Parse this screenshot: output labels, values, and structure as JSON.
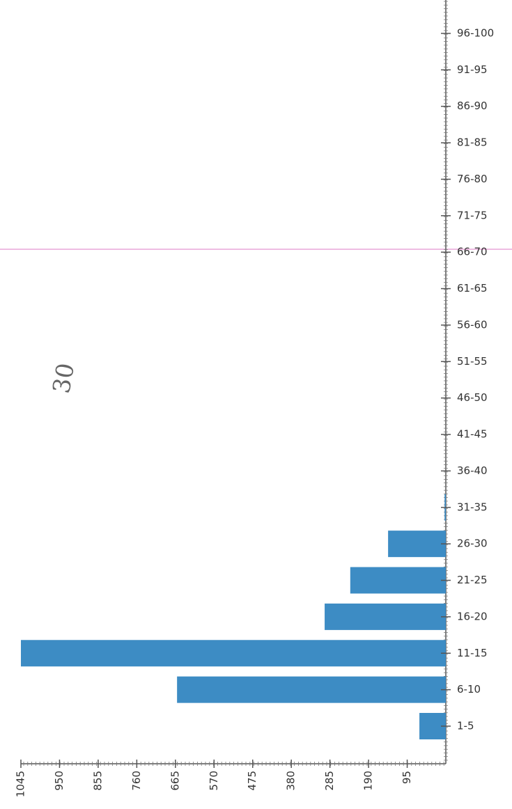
{
  "chart_data": {
    "type": "bar",
    "orientation": "horizontal",
    "x_reversed": true,
    "categories": [
      "1-5",
      "6-10",
      "11-15",
      "16-20",
      "21-25",
      "26-30",
      "31-35",
      "36-40",
      "41-45",
      "46-50",
      "51-55",
      "56-60",
      "61-65",
      "66-70",
      "71-75",
      "76-80",
      "81-85",
      "86-90",
      "91-95",
      "96-100"
    ],
    "values": [
      65,
      661,
      1045,
      298,
      235,
      142,
      3,
      0,
      0,
      0,
      0,
      0,
      0,
      0,
      0,
      0,
      0,
      0,
      0,
      0
    ],
    "color": "#3d8cc4",
    "xlim": [
      0,
      1045
    ],
    "xticks": [
      95,
      190,
      285,
      380,
      475,
      570,
      665,
      760,
      855,
      950,
      1045
    ],
    "annotation": "30"
  }
}
